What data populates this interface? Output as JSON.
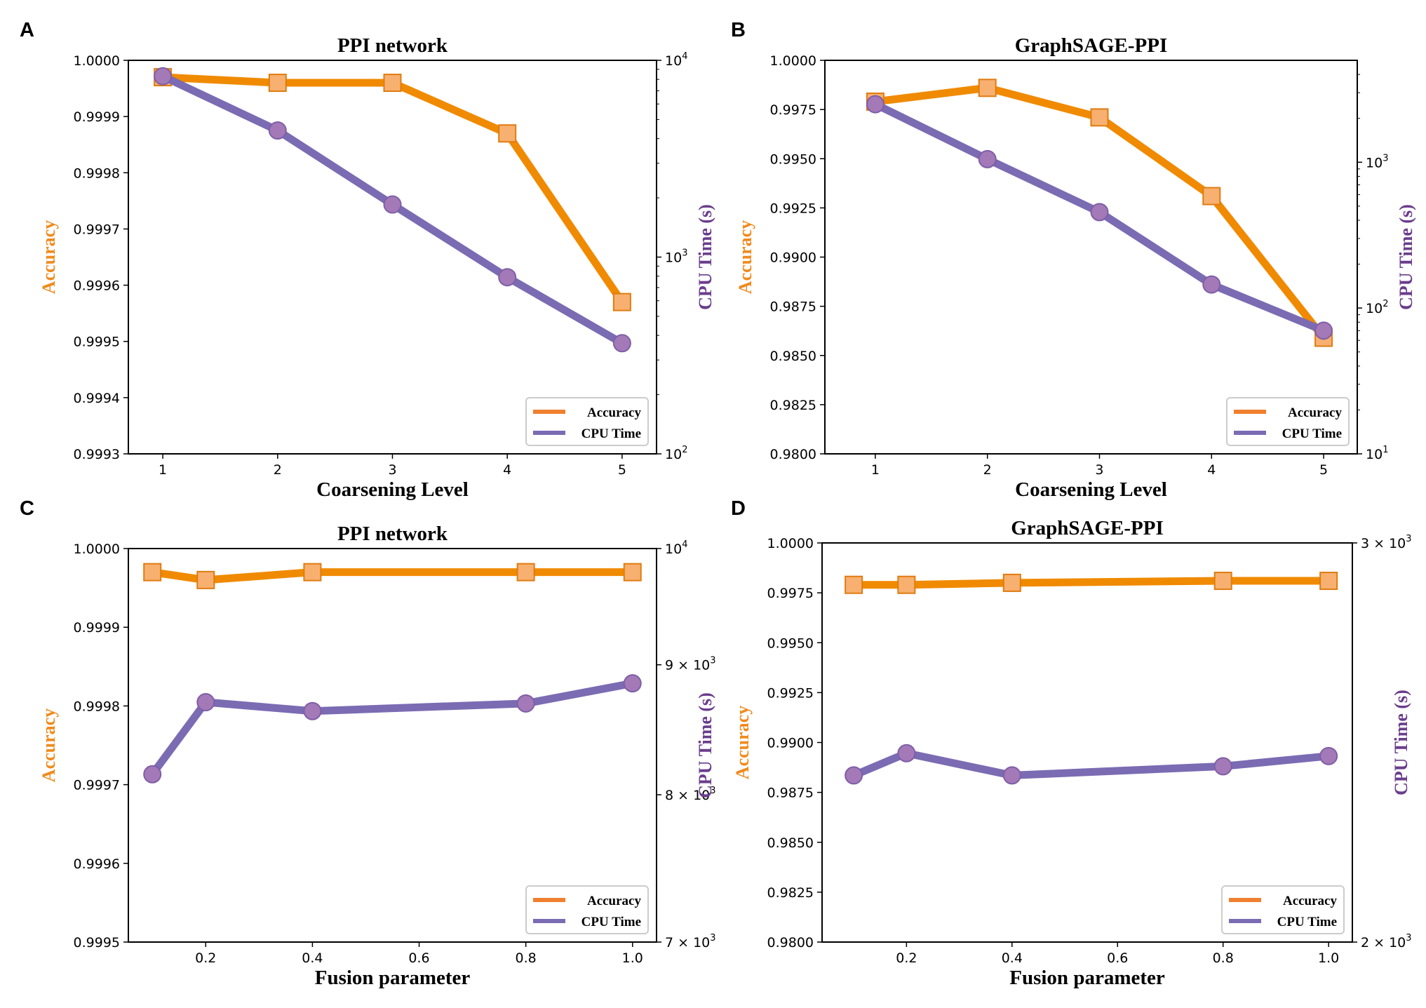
{
  "figure": {
    "panels": [
      "A",
      "B",
      "C",
      "D"
    ]
  },
  "colors": {
    "accuracy_line": "#f08a00",
    "accuracy_marker_fill": "#f7b070",
    "accuracy_marker_edge": "#e07c10",
    "accuracy_label": "#f08a1c",
    "cpu_line": "#7b6bb3",
    "cpu_marker_fill": "#a479b8",
    "cpu_marker_edge": "#7e5fa6",
    "cpu_label": "#6a3d8c",
    "legend_accuracy": "#f08030",
    "legend_cpu": "#7b6bb3"
  },
  "chart_data": [
    {
      "panel": "A",
      "type": "line",
      "title": "PPI network",
      "xlabel": "Coarsening Level",
      "ylabel_left": "Accuracy",
      "ylabel_right": "CPU Time (s)",
      "x": [
        1,
        2,
        3,
        4,
        5
      ],
      "xlim": [
        0.7,
        5.3
      ],
      "x_ticks": [
        1,
        2,
        3,
        4,
        5
      ],
      "x_tick_labels": [
        "1",
        "2",
        "3",
        "4",
        "5"
      ],
      "left_scale": "linear",
      "ylim_left": [
        0.9993,
        1.0
      ],
      "y_ticks_left": [
        0.9993,
        0.9994,
        0.9995,
        0.9996,
        0.9997,
        0.9998,
        0.9999,
        1.0
      ],
      "y_tick_labels_left": [
        "0.9993",
        "0.9994",
        "0.9995",
        "0.9996",
        "0.9997",
        "0.9998",
        "0.9999",
        "1.0000"
      ],
      "right_scale": "log",
      "ylim_right": [
        100,
        10000
      ],
      "y_ticks_right": [
        100,
        1000,
        10000
      ],
      "y_tick_labels_right": [
        {
          "base": "10",
          "exp": "2"
        },
        {
          "base": "10",
          "exp": "3"
        },
        {
          "base": "10",
          "exp": "4"
        }
      ],
      "series": [
        {
          "name": "Accuracy",
          "axis": "left",
          "marker": "square",
          "values": [
            0.99997,
            0.99996,
            0.99996,
            0.99987,
            0.99957
          ]
        },
        {
          "name": "CPU Time",
          "axis": "right",
          "marker": "circle",
          "values": [
            8300,
            4400,
            1850,
            790,
            365
          ]
        }
      ],
      "legend": [
        "Accuracy",
        "CPU Time"
      ],
      "legend_loc": "lower-right"
    },
    {
      "panel": "B",
      "type": "line",
      "title": "GraphSAGE-PPI",
      "xlabel": "Coarsening Level",
      "ylabel_left": "Accuracy",
      "ylabel_right": "CPU Time (s)",
      "x": [
        1,
        2,
        3,
        4,
        5
      ],
      "xlim": [
        0.55,
        5.3
      ],
      "x_ticks": [
        1,
        2,
        3,
        4,
        5
      ],
      "x_tick_labels": [
        "1",
        "2",
        "3",
        "4",
        "5"
      ],
      "left_scale": "linear",
      "ylim_left": [
        0.98,
        1.0
      ],
      "y_ticks_left": [
        0.98,
        0.9825,
        0.985,
        0.9875,
        0.99,
        0.9925,
        0.995,
        0.9975,
        1.0
      ],
      "y_tick_labels_left": [
        "0.9800",
        "0.9825",
        "0.9850",
        "0.9875",
        "0.9900",
        "0.9925",
        "0.9950",
        "0.9975",
        "1.0000"
      ],
      "right_scale": "log",
      "ylim_right": [
        10,
        5000
      ],
      "y_ticks_right": [
        10,
        100,
        1000
      ],
      "y_tick_labels_right": [
        {
          "base": "10",
          "exp": "1"
        },
        {
          "base": "10",
          "exp": "2"
        },
        {
          "base": "10",
          "exp": "3"
        }
      ],
      "series": [
        {
          "name": "Accuracy",
          "axis": "left",
          "marker": "square",
          "values": [
            0.9979,
            0.9986,
            0.9971,
            0.9931,
            0.9859
          ]
        },
        {
          "name": "CPU Time",
          "axis": "right",
          "marker": "circle",
          "values": [
            2500,
            1050,
            455,
            145,
            70
          ]
        }
      ],
      "legend": [
        "Accuracy",
        "CPU Time"
      ],
      "legend_loc": "lower-right"
    },
    {
      "panel": "C",
      "type": "line",
      "title": "PPI network",
      "xlabel": "Fusion parameter",
      "ylabel_left": "Accuracy",
      "ylabel_right": "CPU Time (s)",
      "x": [
        0.1,
        0.2,
        0.4,
        0.8,
        1.0
      ],
      "xlim": [
        0.055,
        1.045
      ],
      "x_ticks": [
        0.2,
        0.4,
        0.6,
        0.8,
        1.0
      ],
      "x_tick_labels": [
        "0.2",
        "0.4",
        "0.6",
        "0.8",
        "1.0"
      ],
      "left_scale": "linear",
      "ylim_left": [
        0.9995,
        1.0
      ],
      "y_ticks_left": [
        0.9995,
        0.9996,
        0.9997,
        0.9998,
        0.9999,
        1.0
      ],
      "y_tick_labels_left": [
        "0.9995",
        "0.9996",
        "0.9997",
        "0.9998",
        "0.9999",
        "1.0000"
      ],
      "right_scale": "log",
      "ylim_right": [
        7000,
        10000
      ],
      "y_ticks_right": [
        7000,
        8000,
        9000,
        10000
      ],
      "y_tick_labels_right": [
        {
          "base": "7 × 10",
          "exp": "3"
        },
        {
          "base": "8 × 10",
          "exp": "3"
        },
        {
          "base": "9 × 10",
          "exp": "3"
        },
        {
          "base": "10",
          "exp": "4"
        }
      ],
      "series": [
        {
          "name": "Accuracy",
          "axis": "left",
          "marker": "square",
          "values": [
            0.99997,
            0.99996,
            0.99997,
            0.99997,
            0.99997
          ]
        },
        {
          "name": "CPU Time",
          "axis": "right",
          "marker": "circle",
          "values": [
            8150,
            8700,
            8630,
            8690,
            8850
          ]
        }
      ],
      "legend": [
        "Accuracy",
        "CPU Time"
      ],
      "legend_loc": "lower-right"
    },
    {
      "panel": "D",
      "type": "line",
      "title": "GraphSAGE-PPI",
      "xlabel": "Fusion parameter",
      "ylabel_left": "Accuracy",
      "ylabel_right": "CPU Time (s)",
      "x": [
        0.1,
        0.2,
        0.4,
        0.8,
        1.0
      ],
      "xlim": [
        0.04,
        1.045
      ],
      "x_ticks": [
        0.2,
        0.4,
        0.6,
        0.8,
        1.0
      ],
      "x_tick_labels": [
        "0.2",
        "0.4",
        "0.6",
        "0.8",
        "1.0"
      ],
      "left_scale": "linear",
      "ylim_left": [
        0.98,
        1.0
      ],
      "y_ticks_left": [
        0.98,
        0.9825,
        0.985,
        0.9875,
        0.99,
        0.9925,
        0.995,
        0.9975,
        1.0
      ],
      "y_tick_labels_left": [
        "0.9800",
        "0.9825",
        "0.9850",
        "0.9875",
        "0.9900",
        "0.9925",
        "0.9950",
        "0.9975",
        "1.0000"
      ],
      "right_scale": "log",
      "ylim_right": [
        2000,
        3000
      ],
      "y_ticks_right": [
        2000,
        3000
      ],
      "y_tick_labels_right": [
        {
          "base": "2 × 10",
          "exp": "3"
        },
        {
          "base": "3 × 10",
          "exp": "3"
        }
      ],
      "series": [
        {
          "name": "Accuracy",
          "axis": "left",
          "marker": "square",
          "values": [
            0.9979,
            0.9979,
            0.998,
            0.9981,
            0.9981
          ]
        },
        {
          "name": "CPU Time",
          "axis": "right",
          "marker": "circle",
          "values": [
            2369,
            2423,
            2369,
            2391,
            2416
          ]
        }
      ],
      "legend": [
        "Accuracy",
        "CPU Time"
      ],
      "legend_loc": "lower-right"
    }
  ]
}
